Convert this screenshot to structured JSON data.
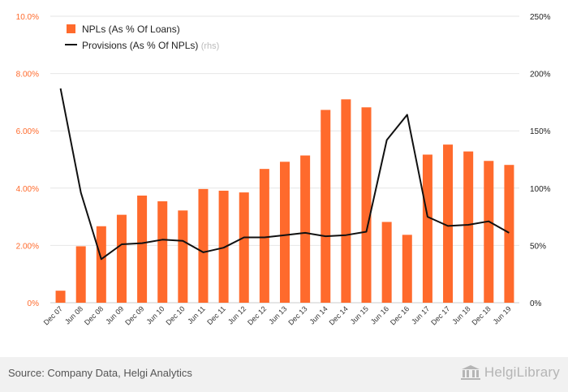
{
  "chart_data": {
    "type": "bar",
    "categories": [
      "Dec 07",
      "Jun 08",
      "Dec 08",
      "Jun 09",
      "Dec 09",
      "Jun 10",
      "Dec 10",
      "Jun 11",
      "Dec 11",
      "Jun 12",
      "Dec 12",
      "Jun 13",
      "Dec 13",
      "Jun 14",
      "Dec 14",
      "Jun 15",
      "Jun 16",
      "Dec 16",
      "Jun 17",
      "Dec 17",
      "Jun 18",
      "Dec 18",
      "Jun 19"
    ],
    "series": [
      {
        "name": "NPLs (As % Of Loans)",
        "type": "bar",
        "axis": "left",
        "color": "#ff6a2c",
        "values": [
          0.42,
          1.97,
          2.67,
          3.07,
          3.74,
          3.54,
          3.22,
          3.97,
          3.91,
          3.85,
          4.67,
          4.92,
          5.14,
          6.73,
          7.1,
          6.82,
          2.82,
          2.37,
          5.17,
          5.52,
          5.28,
          4.95,
          4.81
        ]
      },
      {
        "name": "Provisions (As % Of NPLs)",
        "name_suffix": "(rhs)",
        "type": "line",
        "axis": "right",
        "color": "#111111",
        "values": [
          187,
          96,
          38,
          51,
          52,
          55,
          54,
          44,
          48,
          57,
          57,
          59,
          61,
          58,
          59,
          62,
          142,
          164,
          75,
          67,
          68,
          71,
          61
        ]
      }
    ],
    "y_left": {
      "min": 0,
      "max": 10,
      "ticks": [
        "0%",
        "2.00%",
        "4.00%",
        "6.00%",
        "8.00%",
        "10.0%"
      ]
    },
    "y_right": {
      "min": 0,
      "max": 250,
      "ticks": [
        "0%",
        "50%",
        "100%",
        "150%",
        "200%",
        "250%"
      ]
    },
    "grid": true,
    "legend_position": "top-left"
  },
  "footer": {
    "source": "Source: Company Data, Helgi Analytics",
    "brand": "HelgiLibrary"
  }
}
